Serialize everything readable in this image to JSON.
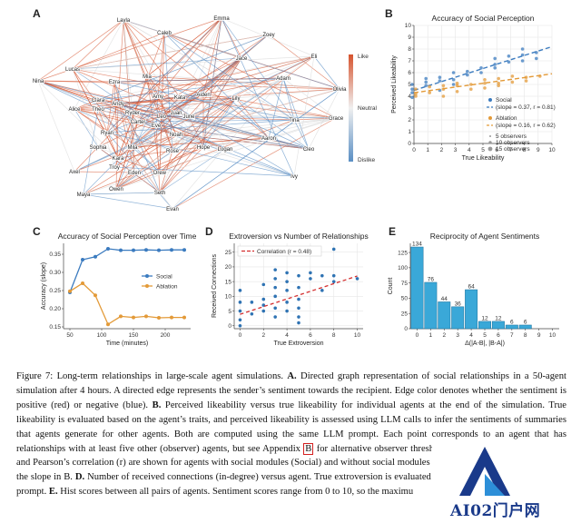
{
  "panel_labels": {
    "a": "A",
    "b": "B",
    "c": "C",
    "d": "D",
    "e": "E"
  },
  "graph": {
    "nodes": [
      "Layla",
      "Emma",
      "Caleb",
      "Zoey",
      "Eli",
      "Lucas",
      "Jace",
      "Adam",
      "Nina",
      "Mia",
      "Ezra",
      "Olivia",
      "Clara",
      "Andy",
      "Amy",
      "Kata",
      "Aiden",
      "Lily",
      "Alice",
      "Theo",
      "Ryder",
      "Juan",
      "Grace",
      "Leo",
      "Carter",
      "Eve",
      "June",
      "Tina",
      "Ryan",
      "Noah",
      "Aaron",
      "Sophia",
      "Mila",
      "Rose",
      "Hope",
      "Logan",
      "Cleo",
      "Kara",
      "Troy",
      "Axel",
      "Eden",
      "Drew",
      "Ivy",
      "Owen",
      "Maya",
      "Seth",
      "Evan"
    ],
    "colorbar": {
      "top": "Like",
      "mid": "Neutral",
      "bottom": "Dislike"
    },
    "colors": {
      "like": "#d6532e",
      "neutral": "#d9d9d9",
      "dislike": "#5a8fc4"
    }
  },
  "chart_data": [
    {
      "panel": "B",
      "type": "scatter",
      "title": "Accuracy of Social Perception",
      "xlabel": "True Likeability",
      "ylabel": "Perceived Likeability",
      "xlim": [
        0,
        10
      ],
      "ylim": [
        0,
        10
      ],
      "xticks": [
        0,
        1,
        2,
        3,
        4,
        5,
        6,
        7,
        8,
        9,
        10
      ],
      "yticks": [
        0,
        1,
        2,
        3,
        4,
        5,
        6,
        7,
        8,
        9,
        10
      ],
      "grid": true,
      "legend_position": "bottom-right",
      "series": [
        {
          "name": "Social",
          "color": "#3b7bbf",
          "fit_label": "(slope = 0.37, r = 0.81)",
          "slope": 0.37,
          "intercept": 4.5,
          "points": [
            [
              0,
              4.3
            ],
            [
              0,
              4.6
            ],
            [
              0,
              5.0
            ],
            [
              0,
              3.9
            ],
            [
              1,
              4.9
            ],
            [
              1,
              5.5
            ],
            [
              1,
              5.2
            ],
            [
              2,
              4.5
            ],
            [
              2,
              5.6
            ],
            [
              2,
              5.3
            ],
            [
              3,
              5.4
            ],
            [
              3,
              6.0
            ],
            [
              3,
              5.0
            ],
            [
              4,
              6.1
            ],
            [
              4,
              5.8
            ],
            [
              5,
              6.4
            ],
            [
              5,
              6.0
            ],
            [
              6,
              7.2
            ],
            [
              6,
              6.7
            ],
            [
              6,
              6.4
            ],
            [
              7,
              7.4
            ],
            [
              7,
              6.9
            ],
            [
              8,
              7.5
            ],
            [
              8,
              7.0
            ],
            [
              8,
              8.0
            ],
            [
              9,
              7.7
            ],
            [
              9,
              7.2
            ]
          ]
        },
        {
          "name": "Ablation",
          "color": "#e39a38",
          "fit_label": "(slope = 0.16, r = 0.62)",
          "slope": 0.16,
          "intercept": 4.3,
          "points": [
            [
              0,
              4.2
            ],
            [
              0,
              4.0
            ],
            [
              0,
              4.6
            ],
            [
              1,
              4.3
            ],
            [
              1,
              4.8
            ],
            [
              2,
              4.6
            ],
            [
              2,
              4.9
            ],
            [
              2,
              4.0
            ],
            [
              3,
              4.9
            ],
            [
              3,
              4.4
            ],
            [
              3,
              5.1
            ],
            [
              4,
              5.0
            ],
            [
              4,
              4.6
            ],
            [
              5,
              5.1
            ],
            [
              5,
              4.7
            ],
            [
              5,
              5.4
            ],
            [
              6,
              5.1
            ],
            [
              6,
              5.5
            ],
            [
              6,
              4.9
            ],
            [
              7,
              5.2
            ],
            [
              7,
              5.7
            ],
            [
              8,
              5.6
            ],
            [
              8,
              5.3
            ],
            [
              9,
              5.7
            ]
          ]
        }
      ],
      "size_legend": [
        "5 observers",
        "10 observers",
        "15 observers"
      ]
    },
    {
      "panel": "C",
      "type": "line",
      "title": "Accuracy of Social Perception over Time",
      "xlabel": "Time (minutes)",
      "ylabel": "Accuracy (slope)",
      "xlim": [
        40,
        240
      ],
      "ylim": [
        0.145,
        0.38
      ],
      "xticks": [
        50,
        100,
        150,
        200
      ],
      "yticks": [
        0.15,
        0.2,
        0.25,
        0.3,
        0.35
      ],
      "legend_position": "center-right",
      "x": [
        50,
        70,
        90,
        110,
        130,
        150,
        170,
        190,
        210,
        230
      ],
      "series": [
        {
          "name": "Social",
          "color": "#3b7bbf",
          "values": [
            0.245,
            0.335,
            0.343,
            0.365,
            0.361,
            0.361,
            0.362,
            0.361,
            0.362,
            0.362
          ]
        },
        {
          "name": "Ablation",
          "color": "#e39a38",
          "values": [
            0.248,
            0.27,
            0.237,
            0.157,
            0.179,
            0.176,
            0.179,
            0.175,
            0.176,
            0.176
          ]
        }
      ]
    },
    {
      "panel": "D",
      "type": "scatter",
      "title": "Extroversion vs Number of Relationships",
      "xlabel": "True Extroversion",
      "ylabel": "Received Connections",
      "xlim": [
        -0.5,
        10.5
      ],
      "ylim": [
        -1,
        28
      ],
      "xticks": [
        0,
        2,
        4,
        6,
        8,
        10
      ],
      "yticks": [
        0,
        5,
        10,
        15,
        20,
        25
      ],
      "grid": true,
      "legend_position": "top-left",
      "fit": {
        "label": "Correlation (r = 0.48)",
        "color": "#d42f2f",
        "slope": 1.3,
        "intercept": 3.9
      },
      "points": [
        [
          0,
          12
        ],
        [
          0,
          8
        ],
        [
          0,
          5
        ],
        [
          0,
          2
        ],
        [
          0,
          0
        ],
        [
          1,
          8
        ],
        [
          1,
          4
        ],
        [
          2,
          14
        ],
        [
          2,
          9
        ],
        [
          2,
          7
        ],
        [
          2,
          5
        ],
        [
          3,
          19
        ],
        [
          3,
          16
        ],
        [
          3,
          13
        ],
        [
          3,
          10
        ],
        [
          3,
          6
        ],
        [
          3,
          3
        ],
        [
          4,
          18
        ],
        [
          4,
          15
        ],
        [
          4,
          12
        ],
        [
          4,
          8
        ],
        [
          4,
          5
        ],
        [
          5,
          17
        ],
        [
          5,
          13
        ],
        [
          5,
          9
        ],
        [
          5,
          6
        ],
        [
          5,
          3
        ],
        [
          5,
          1
        ],
        [
          6,
          18
        ],
        [
          6,
          16
        ],
        [
          7,
          17
        ],
        [
          7,
          12
        ],
        [
          8,
          26
        ],
        [
          8,
          17
        ],
        [
          8,
          15
        ],
        [
          10,
          16
        ]
      ]
    },
    {
      "panel": "E",
      "type": "bar",
      "title": "Reciprocity of Agent Sentiments",
      "xlabel": "Δ(|A-B|, |B-A|)",
      "ylabel": "Count",
      "xlim": [
        -0.5,
        10.5
      ],
      "ylim": [
        0,
        140
      ],
      "xticks": [
        0,
        1,
        2,
        3,
        4,
        5,
        6,
        7,
        8,
        9,
        10
      ],
      "yticks": [
        0,
        25,
        50,
        75,
        100,
        125
      ],
      "color": "#3aa8d8",
      "categories": [
        0,
        1,
        2,
        3,
        4,
        5,
        6,
        7,
        8
      ],
      "values": [
        134,
        76,
        44,
        36,
        64,
        12,
        12,
        6,
        6
      ],
      "data_labels": [
        "134",
        "76",
        "44",
        "36",
        "64",
        "12",
        "12",
        "6",
        "6"
      ]
    }
  ],
  "caption": {
    "fig": "Figure 7:",
    "s1": " Long-term relationships in large-scale agent simulations. ",
    "la": "A.",
    "s2": " Directed graph representation of social relationships in a 50-agent simulation after 4 hours. A directed edge represents the sender’s sentiment towards the recipient. Edge color denotes whether the sentiment is positive (red) or negative (blue). ",
    "lb": "B.",
    "s3": " Perceived likeability versus true likeability for individual agents at the end of the simulation. True likeability is evaluated based on the agent’s traits, and perceived likeability is assessed using LLM calls to infer the sentiments of summaries that agents generate for other agents. Both are computed using the same LLM prompt. Each point corresponds to an agent that has relationships with at least five other (observer) agents, but see Appendix ",
    "appendix": "B",
    "s4": " for alternative observer thresholds. The slope of the line (slope) and Pearson’s correlation (r) are shown for agents with social modules (Social) and without social modules (Ablation). ",
    "lc": "C.",
    "s5": " Acc as measured by the slope in B. ",
    "ld": "D.",
    "s6": " Number of received connections (in-degree) versus agent. True extroversion is evaluated based on agent traits using a LLM prompt. ",
    "le": "E.",
    "s7": " Hist scores between all pairs of agents. Sentiment scores range from 0 to 10, so the maximu"
  },
  "watermark": {
    "text": "AI02门户网",
    "colors": {
      "primary": "#1a3a8a",
      "accent": "#2d8fd8"
    }
  }
}
